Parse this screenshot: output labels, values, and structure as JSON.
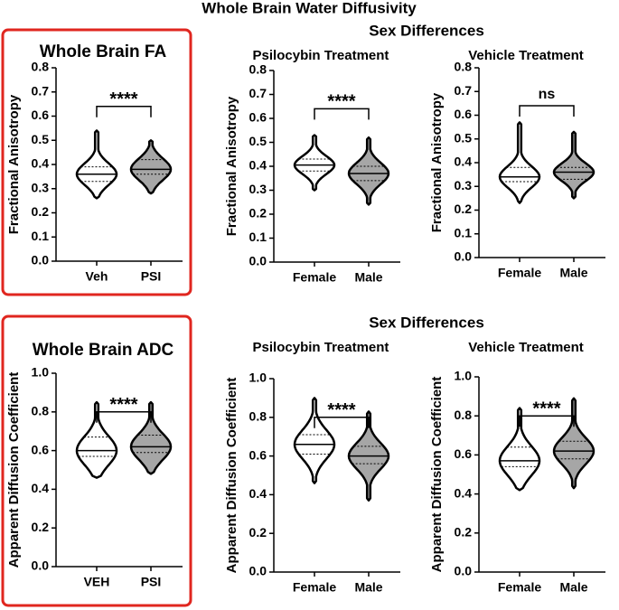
{
  "title": "Whole Brain Water Diffusivity",
  "sections": [
    {
      "title": "Sex Differences"
    },
    {
      "title": "Sex Differences"
    }
  ],
  "chart_data": [
    {
      "type": "violin",
      "title": "Whole Brain FA",
      "ylabel": "Fractional Anisotropy",
      "categories": [
        "Veh",
        "PSI"
      ],
      "colors": [
        "#ffffff",
        "#a6a6a6"
      ],
      "violins": [
        {
          "min": 0.26,
          "q1": 0.33,
          "median": 0.36,
          "q3": 0.39,
          "max": 0.54
        },
        {
          "min": 0.28,
          "q1": 0.36,
          "median": 0.38,
          "q3": 0.42,
          "max": 0.5
        }
      ],
      "significance": "****",
      "ylim": [
        0,
        0.8
      ],
      "yticks": [
        {
          "value": 0,
          "label": "0.0"
        },
        0.1,
        0.2,
        0.3,
        0.4,
        0.5,
        0.6,
        0.7,
        0.8
      ]
    },
    {
      "type": "violin",
      "title": "Psilocybin Treatment",
      "ylabel": "Fractional Anisotropy",
      "categories": [
        "Female",
        "Male"
      ],
      "colors": [
        "#ffffff",
        "#a6a6a6"
      ],
      "violins": [
        {
          "min": 0.3,
          "q1": 0.38,
          "median": 0.405,
          "q3": 0.43,
          "max": 0.53
        },
        {
          "min": 0.24,
          "q1": 0.34,
          "median": 0.37,
          "q3": 0.4,
          "max": 0.52
        }
      ],
      "significance": "****",
      "ylim": [
        0,
        0.8
      ],
      "yticks": [
        {
          "value": 0,
          "label": "0.0"
        },
        0.1,
        0.2,
        0.3,
        0.4,
        0.5,
        0.6,
        0.7,
        0.8
      ]
    },
    {
      "type": "violin",
      "title": "Vehicle Treatment",
      "ylabel": "Fractional Anisotropy",
      "categories": [
        "Female",
        "Male"
      ],
      "colors": [
        "#ffffff",
        "#a6a6a6"
      ],
      "violins": [
        {
          "min": 0.23,
          "q1": 0.32,
          "median": 0.34,
          "q3": 0.38,
          "max": 0.57
        },
        {
          "min": 0.25,
          "q1": 0.33,
          "median": 0.36,
          "q3": 0.38,
          "max": 0.53
        }
      ],
      "significance": "ns",
      "ylim": [
        0,
        0.8
      ],
      "yticks": [
        {
          "value": 0,
          "label": "0.0"
        },
        0.1,
        0.2,
        0.3,
        0.4,
        0.5,
        0.6,
        0.7,
        0.8
      ]
    },
    {
      "type": "violin",
      "title": "Whole Brain ADC",
      "ylabel": "Apparent Diffusion Coefficient",
      "categories": [
        "VEH",
        "PSI"
      ],
      "colors": [
        "#ffffff",
        "#a6a6a6"
      ],
      "violins": [
        {
          "min": 0.46,
          "q1": 0.57,
          "median": 0.6,
          "q3": 0.67,
          "max": 0.85
        },
        {
          "min": 0.48,
          "q1": 0.59,
          "median": 0.62,
          "q3": 0.68,
          "max": 0.85
        }
      ],
      "significance": "****",
      "ylim": [
        0,
        1
      ],
      "yticks": [
        {
          "value": 0,
          "label": "0.0"
        },
        0.2,
        0.4,
        0.6,
        0.8,
        {
          "value": 1,
          "label": "1.0"
        }
      ]
    },
    {
      "type": "violin",
      "title": "Psilocybin Treatment",
      "ylabel": "Apparent Diffusion Coefficient",
      "categories": [
        "Female",
        "Male"
      ],
      "colors": [
        "#ffffff",
        "#a6a6a6"
      ],
      "violins": [
        {
          "min": 0.46,
          "q1": 0.61,
          "median": 0.66,
          "q3": 0.71,
          "max": 0.9
        },
        {
          "min": 0.37,
          "q1": 0.56,
          "median": 0.6,
          "q3": 0.65,
          "max": 0.83
        }
      ],
      "significance": "****",
      "ylim": [
        0,
        1
      ],
      "yticks": [
        {
          "value": 0,
          "label": "0.0"
        },
        0.2,
        0.4,
        0.6,
        0.8,
        {
          "value": 1,
          "label": "1.0"
        }
      ]
    },
    {
      "type": "violin",
      "title": "Vehicle Treatment",
      "ylabel": "Apparent Diffusion Coefficient",
      "categories": [
        "Female",
        "Male"
      ],
      "colors": [
        "#ffffff",
        "#a6a6a6"
      ],
      "violins": [
        {
          "min": 0.42,
          "q1": 0.54,
          "median": 0.57,
          "q3": 0.64,
          "max": 0.84
        },
        {
          "min": 0.43,
          "q1": 0.58,
          "median": 0.62,
          "q3": 0.67,
          "max": 0.89
        }
      ],
      "significance": "****",
      "ylim": [
        0,
        1
      ],
      "yticks": [
        {
          "value": 0,
          "label": "0.0"
        },
        0.2,
        0.4,
        0.6,
        0.8,
        {
          "value": 1,
          "label": "1.0"
        }
      ]
    }
  ]
}
